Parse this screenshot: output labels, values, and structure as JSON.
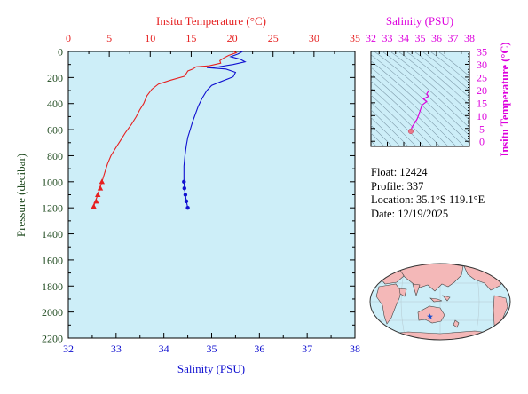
{
  "info": {
    "float": "Float:  12424",
    "profile": "Profile:  337",
    "location": "Location:  35.1°S  119.1°E",
    "date": "Date:  12/19/2025"
  },
  "colors": {
    "background": "#ffffff",
    "plot_fill": "#cdeef8",
    "temperature": "#e62020",
    "salinity": "#1010d0",
    "ts_curve": "#dd00dd",
    "pressure_axis": "#1f4a1f",
    "density_contour": "#7a96a6",
    "land": "#f4b8b8",
    "ocean": "#cdeef8",
    "float_marker": "#1a4fd0"
  },
  "chart_data": [
    {
      "type": "line",
      "name": "profile",
      "xlabel_bottom": "Salinity (PSU)",
      "xlabel_top": "Insitu Temperature (°C)",
      "ylabel": "Pressure (decibar)",
      "salinity_range": [
        32,
        38
      ],
      "temperature_range": [
        0,
        35
      ],
      "pressure_range": [
        0,
        2200
      ],
      "salinity_ticks": [
        32,
        33,
        34,
        35,
        36,
        37,
        38
      ],
      "temperature_ticks": [
        0,
        5,
        10,
        15,
        20,
        25,
        30,
        35
      ],
      "pressure_ticks": [
        0,
        200,
        400,
        600,
        800,
        1000,
        1200,
        1400,
        1600,
        1800,
        2000,
        2200
      ],
      "series": [
        {
          "variable": "temperature",
          "points": [
            [
              20.2,
              0
            ],
            [
              20.5,
              10
            ],
            [
              19.6,
              30
            ],
            [
              19.0,
              50
            ],
            [
              18.5,
              70
            ],
            [
              18.6,
              90
            ],
            [
              17.2,
              110
            ],
            [
              15.6,
              118
            ],
            [
              15.2,
              135
            ],
            [
              14.6,
              150
            ],
            [
              14.2,
              190
            ],
            [
              12.5,
              220
            ],
            [
              11.0,
              250
            ],
            [
              10.2,
              290
            ],
            [
              9.6,
              340
            ],
            [
              9.2,
              400
            ],
            [
              8.7,
              450
            ],
            [
              8.3,
              500
            ],
            [
              7.7,
              560
            ],
            [
              7.0,
              620
            ],
            [
              6.4,
              680
            ],
            [
              5.8,
              740
            ],
            [
              5.2,
              800
            ],
            [
              4.8,
              860
            ],
            [
              4.5,
              920
            ],
            [
              4.2,
              980
            ],
            [
              3.9,
              1040
            ],
            [
              3.6,
              1100
            ],
            [
              3.3,
              1150
            ],
            [
              3.1,
              1190
            ]
          ],
          "sampled": [
            [
              4.1,
              1000
            ],
            [
              3.9,
              1050
            ],
            [
              3.6,
              1100
            ],
            [
              3.4,
              1150
            ],
            [
              3.1,
              1190
            ]
          ]
        },
        {
          "variable": "salinity",
          "points": [
            [
              35.65,
              0
            ],
            [
              35.55,
              20
            ],
            [
              35.4,
              40
            ],
            [
              35.6,
              60
            ],
            [
              35.7,
              80
            ],
            [
              35.45,
              100
            ],
            [
              35.15,
              118
            ],
            [
              34.9,
              124
            ],
            [
              35.3,
              135
            ],
            [
              35.5,
              160
            ],
            [
              35.45,
              195
            ],
            [
              35.2,
              230
            ],
            [
              35.0,
              260
            ],
            [
              34.9,
              300
            ],
            [
              34.8,
              360
            ],
            [
              34.72,
              420
            ],
            [
              34.66,
              480
            ],
            [
              34.6,
              540
            ],
            [
              34.55,
              600
            ],
            [
              34.5,
              660
            ],
            [
              34.47,
              720
            ],
            [
              34.44,
              800
            ],
            [
              34.42,
              880
            ],
            [
              34.42,
              960
            ],
            [
              34.42,
              1000
            ],
            [
              34.43,
              1050
            ],
            [
              34.45,
              1100
            ],
            [
              34.47,
              1150
            ],
            [
              34.5,
              1200
            ]
          ],
          "sampled": [
            [
              34.42,
              1000
            ],
            [
              34.43,
              1050
            ],
            [
              34.45,
              1100
            ],
            [
              34.47,
              1150
            ],
            [
              34.5,
              1200
            ]
          ]
        }
      ]
    },
    {
      "type": "line",
      "name": "ts-diagram",
      "title": "Salinity (PSU)",
      "ylabel": "Insitu Temperature (°C)",
      "salinity_range": [
        32,
        38
      ],
      "temperature_range": [
        -2,
        35
      ],
      "salinity_ticks": [
        32,
        33,
        34,
        35,
        36,
        37,
        38
      ],
      "temperature_ticks": [
        0,
        5,
        10,
        15,
        20,
        25,
        30,
        35
      ],
      "points": [
        [
          35.55,
          20.0
        ],
        [
          35.4,
          18.5
        ],
        [
          35.5,
          17.5
        ],
        [
          35.2,
          16.5
        ],
        [
          35.4,
          15.5
        ],
        [
          35.1,
          14.0
        ],
        [
          35.0,
          12.0
        ],
        [
          34.9,
          10.0
        ],
        [
          34.8,
          8.5
        ],
        [
          34.65,
          7.0
        ],
        [
          34.5,
          5.5
        ],
        [
          34.45,
          4.5
        ],
        [
          34.42,
          3.8
        ]
      ],
      "end_marker": [
        34.43,
        3.9
      ]
    },
    {
      "type": "map",
      "name": "location-map",
      "float_position": {
        "lat": -35.1,
        "lon": 119.1
      }
    }
  ]
}
